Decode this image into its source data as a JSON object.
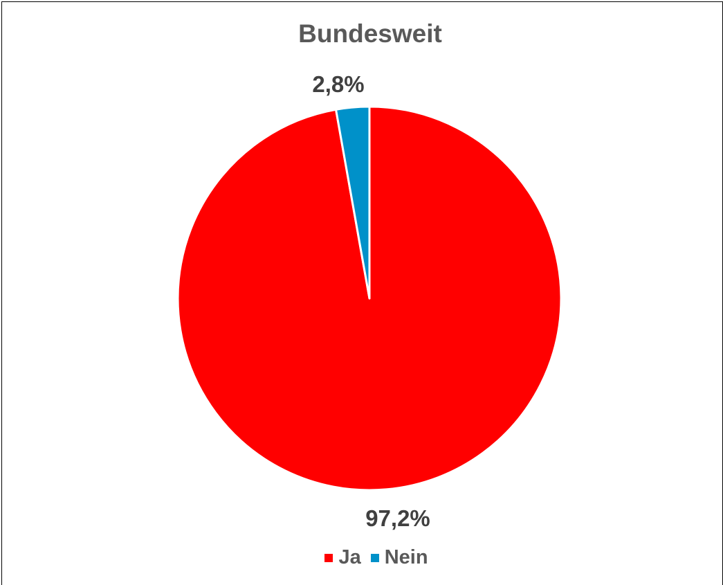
{
  "chart_data": {
    "type": "pie",
    "title": "Bundesweit",
    "slices": [
      {
        "name": "Ja",
        "value": 97.2,
        "label": "97,2%",
        "color": "#ff0000"
      },
      {
        "name": "Nein",
        "value": 2.8,
        "label": "2,8%",
        "color": "#0091c9"
      }
    ],
    "start_angle": "12 o'clock",
    "direction": "clockwise",
    "legend_position": "bottom"
  }
}
